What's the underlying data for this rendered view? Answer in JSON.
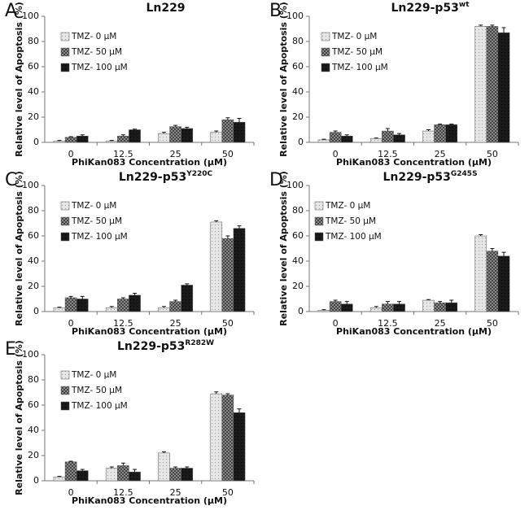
{
  "chart_data": [
    {
      "type": "bar",
      "panel_label": "A",
      "title": "Ln229",
      "x_label": "PhiKan083 Concentration (μM)",
      "y_label": "Relative level of Apoptosis (%)",
      "categories": [
        "0",
        "12.5",
        "25",
        "50"
      ],
      "ylim": [
        0,
        100
      ],
      "yticks": [
        0,
        20,
        40,
        60,
        80,
        100
      ],
      "series": [
        {
          "name": "TMZ- 0 μM",
          "color": "#e6e6e6",
          "values": [
            1,
            1,
            7,
            8
          ],
          "errors": [
            0.5,
            0.5,
            1,
            1
          ]
        },
        {
          "name": "TMZ- 50 μM",
          "color": "#8a8a8a",
          "values": [
            4,
            5,
            12.5,
            18
          ],
          "errors": [
            0.5,
            1,
            1,
            1.5
          ]
        },
        {
          "name": "TMZ- 100 μM",
          "color": "#1a1a1a",
          "values": [
            5,
            10,
            11,
            16
          ],
          "errors": [
            1,
            0.5,
            1,
            3
          ]
        }
      ]
    },
    {
      "type": "bar",
      "panel_label": "B",
      "title": "Ln229-p53",
      "title_superscript": "wt",
      "x_label": "PhiKan083 Concentration (μM)",
      "y_label": "Relative level of Apoptosis (%)",
      "categories": [
        "0",
        "12.5",
        "25",
        "50"
      ],
      "ylim": [
        0,
        100
      ],
      "yticks": [
        0,
        20,
        40,
        60,
        80,
        100
      ],
      "series": [
        {
          "name": "TMZ- 0 μM",
          "color": "#e6e6e6",
          "values": [
            2,
            3,
            9,
            92
          ],
          "errors": [
            0.5,
            0.5,
            1,
            1
          ]
        },
        {
          "name": "TMZ- 50 μM",
          "color": "#8a8a8a",
          "values": [
            8,
            9,
            14,
            92
          ],
          "errors": [
            1,
            2,
            0.5,
            1
          ]
        },
        {
          "name": "TMZ- 100 μM",
          "color": "#1a1a1a",
          "values": [
            5,
            6,
            14,
            87
          ],
          "errors": [
            1,
            1,
            0.5,
            4
          ]
        }
      ]
    },
    {
      "type": "bar",
      "panel_label": "C",
      "title": "Ln229-p53",
      "title_superscript": "Y220C",
      "x_label": "PhiKan083 Concentration (μM)",
      "y_label": "Relative level of Apoptosis (%)",
      "categories": [
        "0",
        "12.5",
        "25",
        "50"
      ],
      "ylim": [
        0,
        100
      ],
      "yticks": [
        0,
        20,
        40,
        60,
        80,
        100
      ],
      "series": [
        {
          "name": "TMZ- 0 μM",
          "color": "#e6e6e6",
          "values": [
            3,
            3,
            3,
            71
          ],
          "errors": [
            0.5,
            1,
            1,
            1
          ]
        },
        {
          "name": "TMZ- 50 μM",
          "color": "#8a8a8a",
          "values": [
            11,
            10,
            8,
            58
          ],
          "errors": [
            1,
            1,
            1,
            2
          ]
        },
        {
          "name": "TMZ- 100 μM",
          "color": "#1a1a1a",
          "values": [
            10,
            13,
            21,
            66
          ],
          "errors": [
            2,
            1.5,
            1,
            2
          ]
        }
      ]
    },
    {
      "type": "bar",
      "panel_label": "D",
      "title": "Ln229-p53",
      "title_superscript": "G245S",
      "x_label": "PhiKan083 Concentration (μM)",
      "y_label": "Relative level of Apoptosis (%)",
      "categories": [
        "0",
        "12.5",
        "25",
        "50"
      ],
      "ylim": [
        0,
        100
      ],
      "yticks": [
        0,
        20,
        40,
        60,
        80,
        100
      ],
      "series": [
        {
          "name": "TMZ- 0 μM",
          "color": "#e6e6e6",
          "values": [
            1,
            3,
            9,
            60
          ],
          "errors": [
            0.5,
            1,
            0.5,
            1
          ]
        },
        {
          "name": "TMZ- 50 μM",
          "color": "#8a8a8a",
          "values": [
            8,
            6,
            7,
            48
          ],
          "errors": [
            1,
            2,
            1,
            2
          ]
        },
        {
          "name": "TMZ- 100 μM",
          "color": "#1a1a1a",
          "values": [
            6,
            6,
            7,
            44
          ],
          "errors": [
            2,
            2,
            2,
            3
          ]
        }
      ]
    },
    {
      "type": "bar",
      "panel_label": "E",
      "title": "Ln229-p53",
      "title_superscript": "R282W",
      "x_label": "PhiKan083 Concentration (μM)",
      "y_label": "Relative level of Apoptosis (%)",
      "categories": [
        "0",
        "12.5",
        "25",
        "50"
      ],
      "ylim": [
        0,
        100
      ],
      "yticks": [
        0,
        20,
        40,
        60,
        80,
        100
      ],
      "series": [
        {
          "name": "TMZ- 0 μM",
          "color": "#e6e6e6",
          "values": [
            3,
            10,
            22,
            69
          ],
          "errors": [
            0.5,
            1,
            1,
            1.5
          ]
        },
        {
          "name": "TMZ- 50 μM",
          "color": "#8a8a8a",
          "values": [
            15,
            12,
            10,
            68
          ],
          "errors": [
            0.5,
            2,
            1,
            1
          ]
        },
        {
          "name": "TMZ- 100 μM",
          "color": "#1a1a1a",
          "values": [
            8,
            7,
            10,
            54
          ],
          "errors": [
            1,
            2,
            1,
            3
          ]
        }
      ]
    }
  ]
}
